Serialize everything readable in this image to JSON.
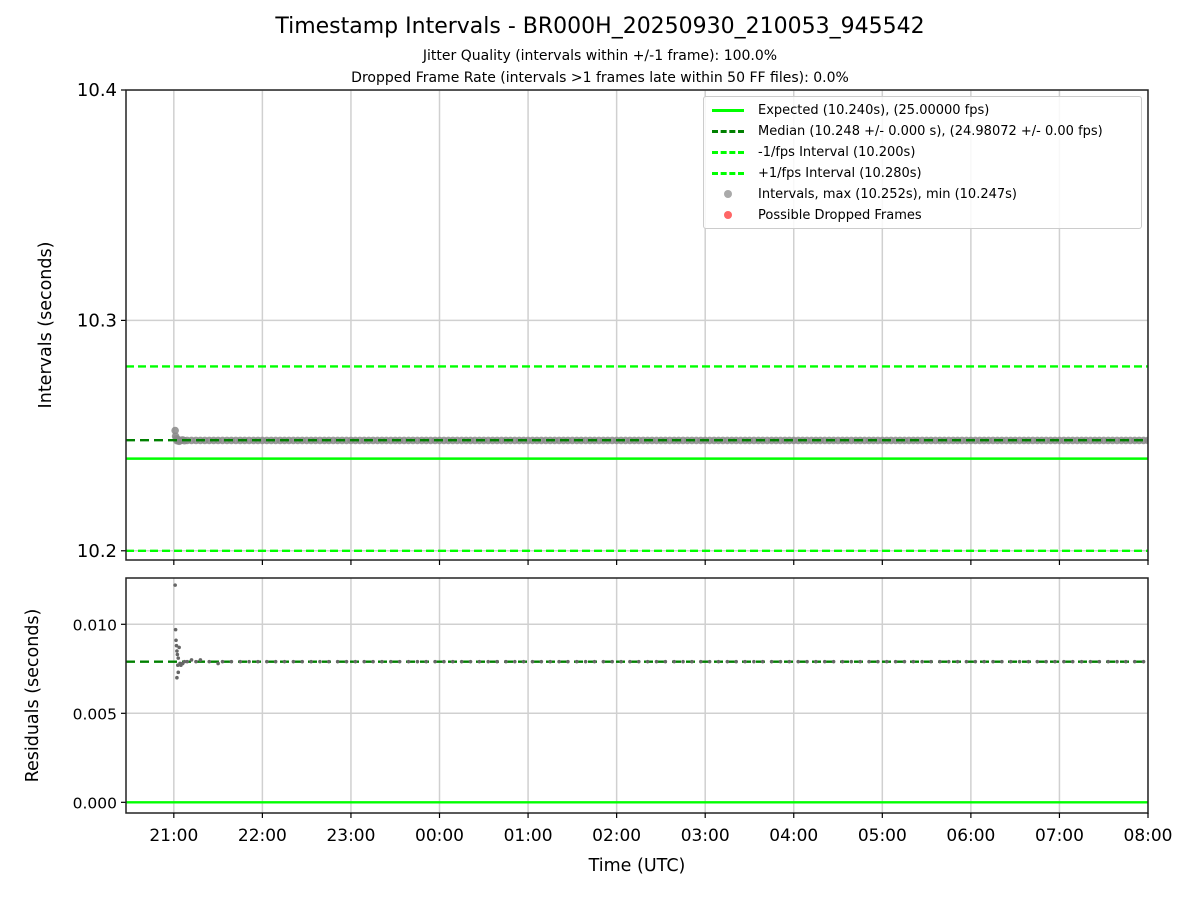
{
  "colors": {
    "expected": "#00ff00",
    "median": "#008000",
    "fps_interval": "#00ff00",
    "intervals": "#808080",
    "dropped": "#ff4040",
    "grid": "#d0d0d0"
  },
  "chart_data": [
    {
      "type": "scatter",
      "title": "Timestamp Intervals - BR000H_20250930_210053_945542",
      "subtitle_1": "Jitter Quality (intervals within +/-1 frame): 100.0%",
      "subtitle_2": "Dropped Frame Rate (intervals >1 frames late within 50 FF files): 0.0%",
      "ylabel": "Intervals (seconds)",
      "ylim": [
        10.196,
        10.4
      ],
      "yticks": [
        "10.2",
        "10.3",
        "10.4"
      ],
      "ytick_values": [
        10.2,
        10.3,
        10.4
      ],
      "x_unit": "hours after 21:00 UTC",
      "xlim": [
        -0.54,
        11.0
      ],
      "grid": true,
      "legend_position": "top-right",
      "legend": [
        {
          "label": "Expected (10.240s), (25.00000 fps)",
          "style": "solid",
          "color": "#00ff00"
        },
        {
          "label": "Median (10.248 +/- 0.000 s), (24.98072 +/- 0.00 fps)",
          "style": "dashed",
          "color": "#008000"
        },
        {
          "label": "-1/fps Interval (10.200s)",
          "style": "dashed",
          "color": "#00ff00"
        },
        {
          "label": "+1/fps Interval (10.280s)",
          "style": "dashed",
          "color": "#00ff00"
        },
        {
          "label": "Intervals, max (10.252s), min (10.247s)",
          "style": "dot",
          "color": "#aaaaaa"
        },
        {
          "label": "Possible Dropped Frames",
          "style": "dot",
          "color": "#ff6666"
        }
      ],
      "hlines": {
        "expected": 10.24,
        "median": 10.248,
        "minus_fps": 10.2,
        "plus_fps": 10.28
      },
      "points_early": [
        [
          0.015,
          10.2522
        ],
        [
          0.02,
          10.2497
        ],
        [
          0.03,
          10.2486
        ],
        [
          0.035,
          10.2478
        ],
        [
          0.05,
          10.2482
        ],
        [
          0.06,
          10.2475
        ],
        [
          0.08,
          10.2479
        ],
        [
          0.1,
          10.2481
        ],
        [
          0.12,
          10.2478
        ],
        [
          0.15,
          10.2479
        ]
      ],
      "points_steady": {
        "from": 0.2,
        "to": 11.0,
        "step": 0.05,
        "value": 10.2479
      },
      "dropped_points": []
    },
    {
      "type": "scatter",
      "ylabel": "Residuals (seconds)",
      "xlabel": "Time (UTC)",
      "ylim": [
        -0.0006,
        0.0126
      ],
      "yticks": [
        "0.000",
        "0.005",
        "0.010"
      ],
      "ytick_values": [
        0,
        0.005,
        0.01
      ],
      "xticks": [
        "21:00",
        "22:00",
        "23:00",
        "00:00",
        "01:00",
        "02:00",
        "03:00",
        "04:00",
        "05:00",
        "06:00",
        "07:00",
        "08:00"
      ],
      "xtick_values": [
        0,
        1,
        2,
        3,
        4,
        5,
        6,
        7,
        8,
        9,
        10,
        11
      ],
      "xlim": [
        -0.54,
        11.0
      ],
      "hlines": {
        "zero": 0,
        "median": 0.0079
      },
      "points_early": [
        [
          0.015,
          0.0122
        ],
        [
          0.02,
          0.0097
        ],
        [
          0.025,
          0.0091
        ],
        [
          0.03,
          0.0088
        ],
        [
          0.035,
          0.0085
        ],
        [
          0.04,
          0.0083
        ],
        [
          0.05,
          0.0081
        ],
        [
          0.06,
          0.0087
        ],
        [
          0.045,
          0.0077
        ],
        [
          0.05,
          0.0073
        ],
        [
          0.035,
          0.007
        ],
        [
          0.07,
          0.0078
        ],
        [
          0.08,
          0.0077
        ],
        [
          0.1,
          0.0078
        ],
        [
          0.12,
          0.0079
        ],
        [
          0.15,
          0.0079
        ],
        [
          0.2,
          0.008
        ],
        [
          0.25,
          0.0079
        ],
        [
          0.3,
          0.008
        ],
        [
          0.4,
          0.0079
        ],
        [
          0.5,
          0.0078
        ]
      ],
      "points_steady": {
        "from": 0.55,
        "to": 11.0,
        "step": 0.1,
        "value": 0.0079
      }
    }
  ]
}
